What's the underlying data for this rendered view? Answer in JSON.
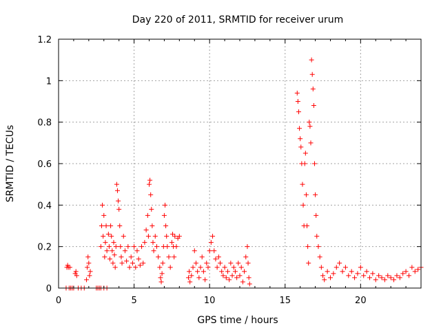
{
  "chart_data": {
    "type": "scatter",
    "title": "Day 220 of 2011, SRMTID for receiver urum",
    "xlabel": "GPS time / hours",
    "ylabel": "SRMTID / TECUs",
    "xlim": [
      0,
      24
    ],
    "ylim": [
      0,
      1.2
    ],
    "x_ticks": [
      0,
      5,
      10,
      15,
      20
    ],
    "x_tick_labels": [
      "0",
      "5",
      "10",
      "15",
      "20"
    ],
    "y_ticks": [
      0,
      0.2,
      0.4,
      0.6,
      0.8,
      1.0,
      1.2
    ],
    "y_tick_labels": [
      "0",
      "0.2",
      "0.4",
      "0.6",
      "0.8",
      "1",
      "1.2"
    ],
    "grid": true,
    "marker": "+",
    "color": "#ff0000",
    "series": [
      {
        "name": "SRMTID",
        "points": [
          [
            0.5,
            0.0
          ],
          [
            0.55,
            0.1
          ],
          [
            0.6,
            0.11
          ],
          [
            0.65,
            0.1
          ],
          [
            0.7,
            0.0
          ],
          [
            0.75,
            0.1
          ],
          [
            0.8,
            0.0
          ],
          [
            0.9,
            0.0
          ],
          [
            1.0,
            0.0
          ],
          [
            1.1,
            0.07
          ],
          [
            1.15,
            0.08
          ],
          [
            1.2,
            0.06
          ],
          [
            1.3,
            0.0
          ],
          [
            1.5,
            0.0
          ],
          [
            1.7,
            0.0
          ],
          [
            1.85,
            0.04
          ],
          [
            1.9,
            0.1
          ],
          [
            1.95,
            0.15
          ],
          [
            2.0,
            0.12
          ],
          [
            2.05,
            0.06
          ],
          [
            2.1,
            0.08
          ],
          [
            2.5,
            0.0
          ],
          [
            2.6,
            0.0
          ],
          [
            2.7,
            0.0
          ],
          [
            2.8,
            0.0
          ],
          [
            3.0,
            0.0
          ],
          [
            3.2,
            0.0
          ],
          [
            2.8,
            0.2
          ],
          [
            2.85,
            0.3
          ],
          [
            2.9,
            0.4
          ],
          [
            2.95,
            0.25
          ],
          [
            3.0,
            0.35
          ],
          [
            3.05,
            0.15
          ],
          [
            3.1,
            0.22
          ],
          [
            3.15,
            0.3
          ],
          [
            3.2,
            0.18
          ],
          [
            3.3,
            0.26
          ],
          [
            3.35,
            0.2
          ],
          [
            3.4,
            0.14
          ],
          [
            3.45,
            0.3
          ],
          [
            3.5,
            0.25
          ],
          [
            3.55,
            0.18
          ],
          [
            3.6,
            0.12
          ],
          [
            3.65,
            0.22
          ],
          [
            3.7,
            0.16
          ],
          [
            3.75,
            0.1
          ],
          [
            3.8,
            0.2
          ],
          [
            3.85,
            0.5
          ],
          [
            3.9,
            0.47
          ],
          [
            3.95,
            0.42
          ],
          [
            4.0,
            0.38
          ],
          [
            4.05,
            0.3
          ],
          [
            4.1,
            0.2
          ],
          [
            4.15,
            0.15
          ],
          [
            4.2,
            0.12
          ],
          [
            4.3,
            0.25
          ],
          [
            4.4,
            0.18
          ],
          [
            4.5,
            0.13
          ],
          [
            4.6,
            0.2
          ],
          [
            4.7,
            0.1
          ],
          [
            4.8,
            0.15
          ],
          [
            4.9,
            0.12
          ],
          [
            5.0,
            0.2
          ],
          [
            5.1,
            0.1
          ],
          [
            5.2,
            0.18
          ],
          [
            5.3,
            0.14
          ],
          [
            5.4,
            0.11
          ],
          [
            5.5,
            0.2
          ],
          [
            5.6,
            0.12
          ],
          [
            5.7,
            0.22
          ],
          [
            5.8,
            0.28
          ],
          [
            5.9,
            0.35
          ],
          [
            5.95,
            0.25
          ],
          [
            6.0,
            0.5
          ],
          [
            6.05,
            0.52
          ],
          [
            6.1,
            0.45
          ],
          [
            6.15,
            0.38
          ],
          [
            6.2,
            0.3
          ],
          [
            6.25,
            0.22
          ],
          [
            6.3,
            0.18
          ],
          [
            6.4,
            0.25
          ],
          [
            6.5,
            0.2
          ],
          [
            6.6,
            0.15
          ],
          [
            6.7,
            0.1
          ],
          [
            6.75,
            0.05
          ],
          [
            6.8,
            0.03
          ],
          [
            6.85,
            0.07
          ],
          [
            6.9,
            0.12
          ],
          [
            6.95,
            0.2
          ],
          [
            7.0,
            0.35
          ],
          [
            7.05,
            0.4
          ],
          [
            7.1,
            0.3
          ],
          [
            7.15,
            0.25
          ],
          [
            7.2,
            0.2
          ],
          [
            7.3,
            0.15
          ],
          [
            7.4,
            0.1
          ],
          [
            7.5,
            0.22
          ],
          [
            7.55,
            0.26
          ],
          [
            7.6,
            0.2
          ],
          [
            7.65,
            0.15
          ],
          [
            7.7,
            0.25
          ],
          [
            7.8,
            0.2
          ],
          [
            7.9,
            0.24
          ],
          [
            8.0,
            0.25
          ],
          [
            8.6,
            0.05
          ],
          [
            8.65,
            0.08
          ],
          [
            8.7,
            0.03
          ],
          [
            8.8,
            0.06
          ],
          [
            8.9,
            0.1
          ],
          [
            9.0,
            0.18
          ],
          [
            9.1,
            0.12
          ],
          [
            9.2,
            0.08
          ],
          [
            9.3,
            0.05
          ],
          [
            9.4,
            0.1
          ],
          [
            9.5,
            0.15
          ],
          [
            9.6,
            0.08
          ],
          [
            9.7,
            0.04
          ],
          [
            9.8,
            0.12
          ],
          [
            9.9,
            0.1
          ],
          [
            10.0,
            0.18
          ],
          [
            10.1,
            0.22
          ],
          [
            10.2,
            0.25
          ],
          [
            10.3,
            0.18
          ],
          [
            10.4,
            0.14
          ],
          [
            10.5,
            0.1
          ],
          [
            10.6,
            0.15
          ],
          [
            10.7,
            0.12
          ],
          [
            10.8,
            0.08
          ],
          [
            10.9,
            0.06
          ],
          [
            11.0,
            0.1
          ],
          [
            11.1,
            0.05
          ],
          [
            11.2,
            0.08
          ],
          [
            11.3,
            0.04
          ],
          [
            11.4,
            0.12
          ],
          [
            11.5,
            0.06
          ],
          [
            11.6,
            0.1
          ],
          [
            11.7,
            0.08
          ],
          [
            11.8,
            0.05
          ],
          [
            11.9,
            0.12
          ],
          [
            12.0,
            0.06
          ],
          [
            12.1,
            0.1
          ],
          [
            12.2,
            0.03
          ],
          [
            12.3,
            0.08
          ],
          [
            12.4,
            0.15
          ],
          [
            12.5,
            0.2
          ],
          [
            12.55,
            0.12
          ],
          [
            12.6,
            0.05
          ],
          [
            12.65,
            0.02
          ],
          [
            15.8,
            0.94
          ],
          [
            15.85,
            0.9
          ],
          [
            15.9,
            0.85
          ],
          [
            15.95,
            0.77
          ],
          [
            16.0,
            0.72
          ],
          [
            16.05,
            0.68
          ],
          [
            16.1,
            0.6
          ],
          [
            16.15,
            0.5
          ],
          [
            16.2,
            0.4
          ],
          [
            16.25,
            0.3
          ],
          [
            16.3,
            0.6
          ],
          [
            16.35,
            0.65
          ],
          [
            16.4,
            0.45
          ],
          [
            16.45,
            0.3
          ],
          [
            16.5,
            0.2
          ],
          [
            16.55,
            0.12
          ],
          [
            16.6,
            0.8
          ],
          [
            16.65,
            0.78
          ],
          [
            16.7,
            0.7
          ],
          [
            16.75,
            1.1
          ],
          [
            16.8,
            1.03
          ],
          [
            16.85,
            0.96
          ],
          [
            16.9,
            0.88
          ],
          [
            16.95,
            0.6
          ],
          [
            17.0,
            0.45
          ],
          [
            17.05,
            0.35
          ],
          [
            17.1,
            0.25
          ],
          [
            17.2,
            0.2
          ],
          [
            17.3,
            0.15
          ],
          [
            17.4,
            0.1
          ],
          [
            17.5,
            0.06
          ],
          [
            17.6,
            0.04
          ],
          [
            17.8,
            0.08
          ],
          [
            18.0,
            0.05
          ],
          [
            18.2,
            0.07
          ],
          [
            18.4,
            0.1
          ],
          [
            18.6,
            0.12
          ],
          [
            18.8,
            0.08
          ],
          [
            19.0,
            0.1
          ],
          [
            19.2,
            0.06
          ],
          [
            19.4,
            0.08
          ],
          [
            19.6,
            0.05
          ],
          [
            19.8,
            0.07
          ],
          [
            20.0,
            0.1
          ],
          [
            20.2,
            0.06
          ],
          [
            20.4,
            0.08
          ],
          [
            20.6,
            0.05
          ],
          [
            20.8,
            0.07
          ],
          [
            21.0,
            0.04
          ],
          [
            21.2,
            0.06
          ],
          [
            21.4,
            0.05
          ],
          [
            21.6,
            0.04
          ],
          [
            21.8,
            0.06
          ],
          [
            22.0,
            0.05
          ],
          [
            22.2,
            0.04
          ],
          [
            22.4,
            0.06
          ],
          [
            22.6,
            0.05
          ],
          [
            22.8,
            0.07
          ],
          [
            23.0,
            0.08
          ],
          [
            23.2,
            0.06
          ],
          [
            23.4,
            0.1
          ],
          [
            23.6,
            0.08
          ],
          [
            23.8,
            0.09
          ],
          [
            24.0,
            0.1
          ]
        ]
      }
    ]
  }
}
